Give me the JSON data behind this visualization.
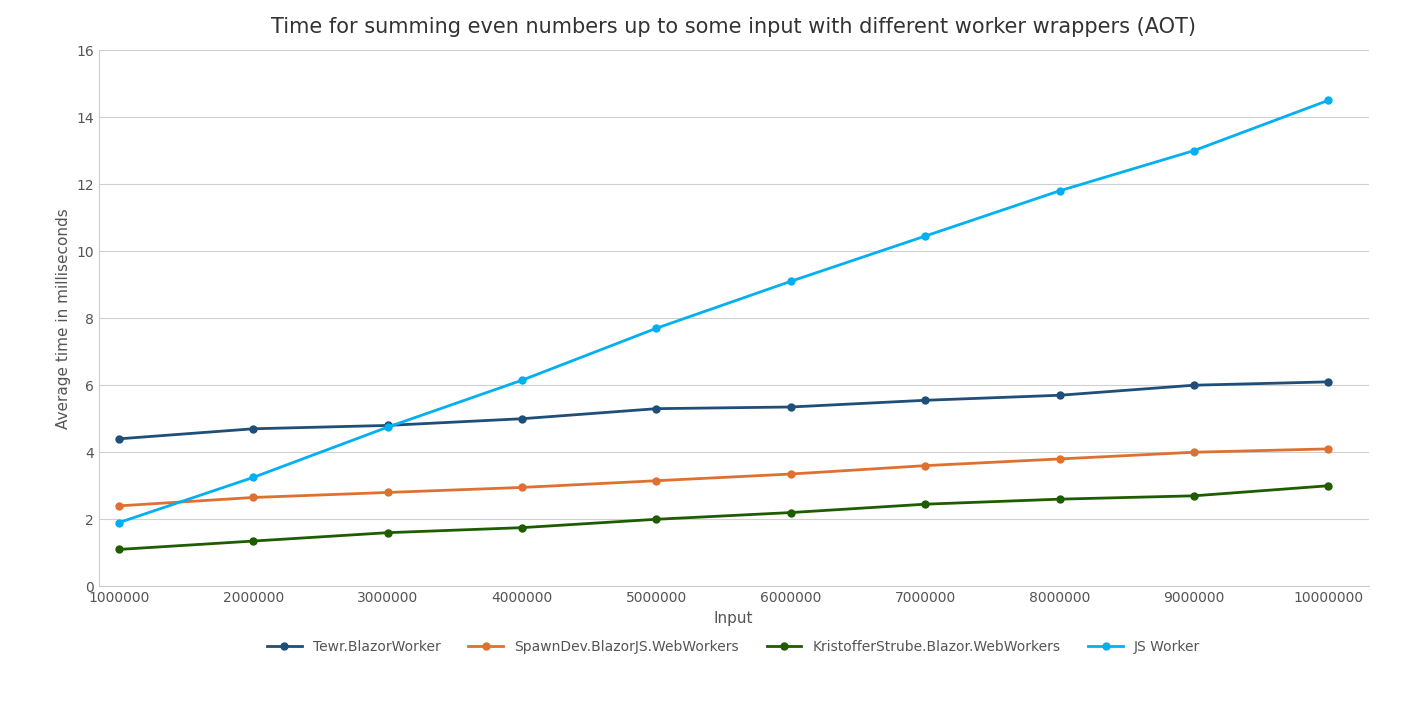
{
  "title": "Time for summing even numbers up to some input with different worker wrappers (AOT)",
  "xlabel": "Input",
  "ylabel": "Average time in milliseconds",
  "x": [
    1000000,
    2000000,
    3000000,
    4000000,
    5000000,
    6000000,
    7000000,
    8000000,
    9000000,
    10000000
  ],
  "series": [
    {
      "name": "Tewr.BlazorWorker",
      "color": "#1f4e79",
      "values": [
        4.4,
        4.7,
        4.8,
        5.0,
        5.3,
        5.35,
        5.55,
        5.7,
        6.0,
        6.1
      ]
    },
    {
      "name": "SpawnDev.BlazorJS.WebWorkers",
      "color": "#e07030",
      "values": [
        2.4,
        2.65,
        2.8,
        2.95,
        3.15,
        3.35,
        3.6,
        3.8,
        4.0,
        4.1
      ]
    },
    {
      "name": "KristofferStrube.Blazor.WebWorkers",
      "color": "#1e5c00",
      "values": [
        1.1,
        1.35,
        1.6,
        1.75,
        2.0,
        2.2,
        2.45,
        2.6,
        2.7,
        3.0
      ]
    },
    {
      "name": "JS Worker",
      "color": "#00b0f0",
      "values": [
        1.9,
        3.25,
        4.75,
        6.15,
        7.7,
        9.1,
        10.45,
        11.8,
        13.0,
        14.5
      ]
    }
  ],
  "ylim": [
    0,
    16
  ],
  "yticks": [
    0,
    2,
    4,
    6,
    8,
    10,
    12,
    14,
    16
  ],
  "xlim": [
    850000,
    10300000
  ],
  "background_color": "#ffffff",
  "plot_bg_color": "#ffffff",
  "grid_color": "#d0d0d0",
  "title_fontsize": 15,
  "axis_label_fontsize": 11,
  "tick_fontsize": 10,
  "legend_fontsize": 10
}
